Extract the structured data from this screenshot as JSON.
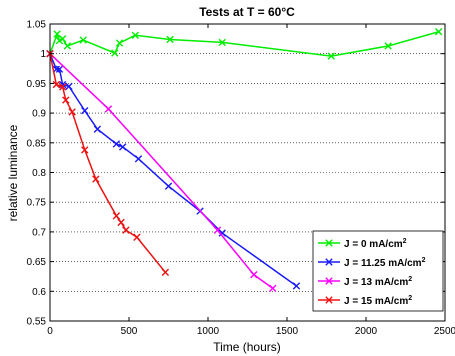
{
  "chart_data": {
    "type": "line",
    "title": "Tests at T = 60°C",
    "xlabel": "Time (hours)",
    "ylabel": "relative luminance",
    "xlim": [
      0,
      2500
    ],
    "ylim": [
      0.55,
      1.05
    ],
    "x_ticks": [
      0,
      500,
      1000,
      1500,
      2000,
      2500
    ],
    "y_ticks": [
      0.55,
      0.6,
      0.65,
      0.7,
      0.75,
      0.8,
      0.85,
      0.9,
      0.95,
      1,
      1.05
    ],
    "y_tick_labels": [
      "0.55",
      "0.6",
      "0.65",
      "0.7",
      "0.75",
      "0.8",
      "0.85",
      "0.9",
      "0.95",
      "1",
      "1.05"
    ],
    "grid": "horizontal dotted",
    "legend_position": "bottom-right",
    "series": [
      {
        "name": "J = 0 mA/cm",
        "name_sup": "2",
        "color": "#00ee00",
        "marker": "x",
        "x": [
          0,
          45,
          60,
          80,
          110,
          210,
          410,
          440,
          540,
          760,
          1090,
          1780,
          2140,
          2460
        ],
        "y": [
          1.0,
          1.033,
          1.022,
          1.025,
          1.013,
          1.023,
          1.001,
          1.018,
          1.031,
          1.024,
          1.019,
          0.996,
          1.013,
          1.037
        ]
      },
      {
        "name": "J = 11.25 mA/cm",
        "name_sup": "2",
        "color": "#1a1aff",
        "marker": "x",
        "x": [
          0,
          40,
          60,
          80,
          120,
          220,
          300,
          420,
          460,
          560,
          750,
          950,
          1090,
          1560
        ],
        "y": [
          1.0,
          0.974,
          0.974,
          0.948,
          0.945,
          0.904,
          0.873,
          0.848,
          0.843,
          0.823,
          0.777,
          0.735,
          0.698,
          0.609
        ]
      },
      {
        "name": "J = 13 mA/cm",
        "name_sup": "2",
        "color": "#ff00ff",
        "marker": "x",
        "x": [
          0,
          370,
          1060,
          1290,
          1410
        ],
        "y": [
          1.0,
          0.907,
          0.703,
          0.628,
          0.605
        ]
      },
      {
        "name": "J = 15 mA/cm",
        "name_sup": "2",
        "color": "#ee1111",
        "marker": "x",
        "x": [
          0,
          40,
          80,
          100,
          140,
          220,
          290,
          420,
          450,
          480,
          550,
          730
        ],
        "y": [
          1.0,
          0.948,
          0.944,
          0.922,
          0.902,
          0.838,
          0.789,
          0.727,
          0.716,
          0.703,
          0.691,
          0.632
        ]
      }
    ]
  }
}
